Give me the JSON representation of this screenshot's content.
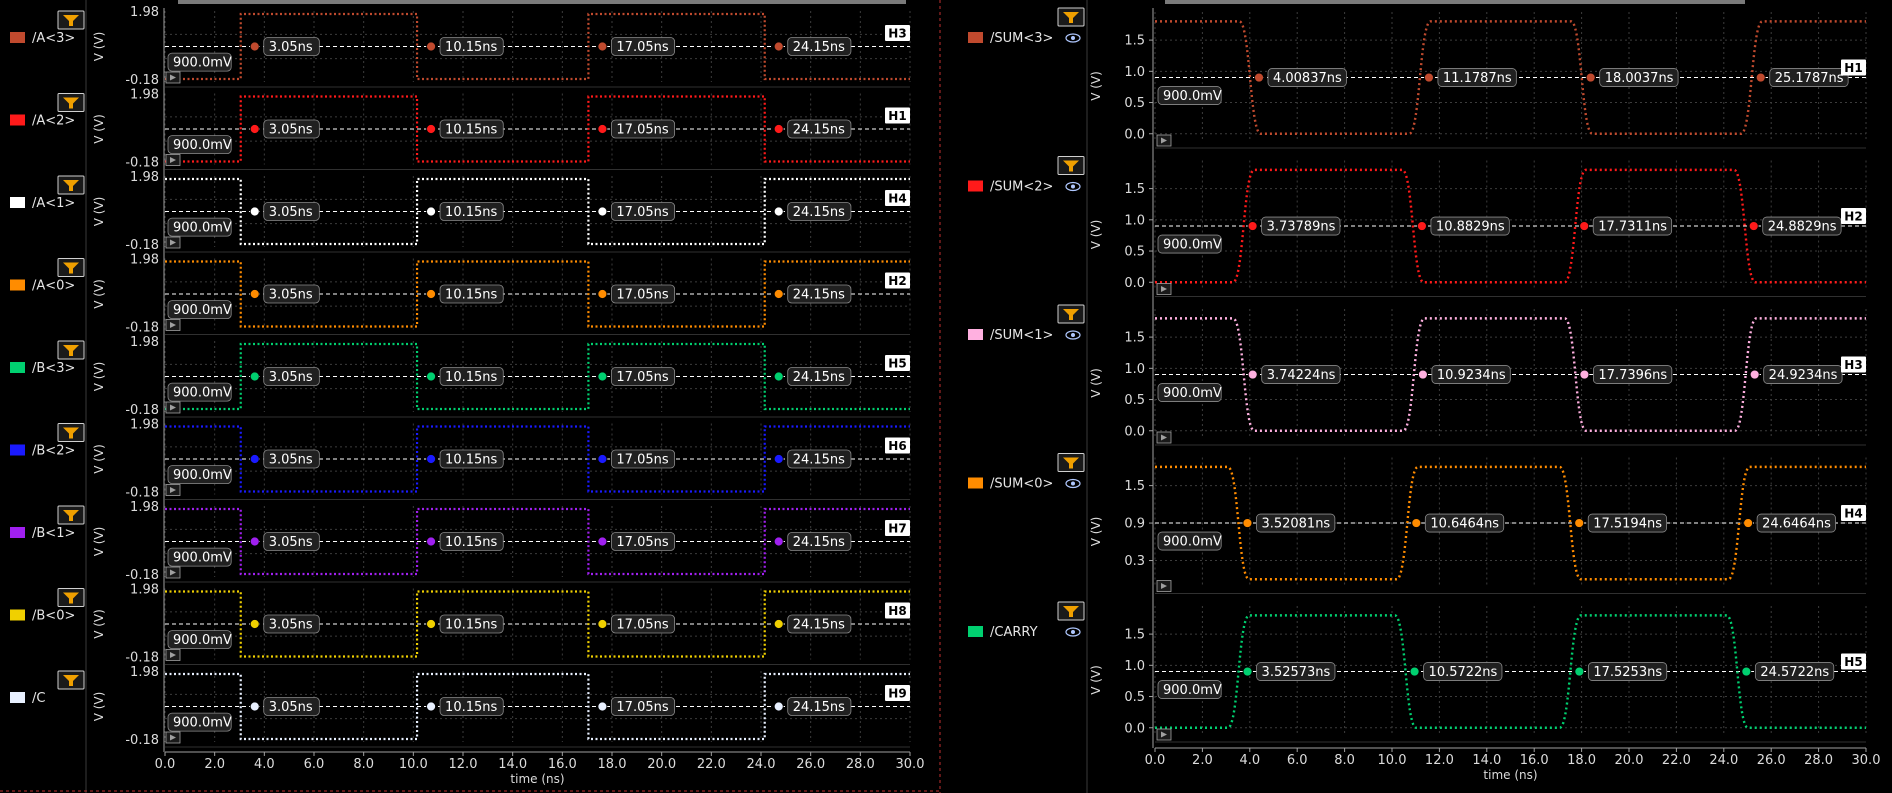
{
  "x_axis_title": "time (ns)",
  "y_axis_unit": "V (V)",
  "chart_data": [
    {
      "type": "line",
      "xlabel": "time (ns)",
      "ylabel": "V (V)",
      "xlim": [
        0,
        30
      ],
      "ylim": [
        -0.18,
        1.98
      ],
      "x_ticks": [
        "0.0",
        "2.0",
        "4.0",
        "6.0",
        "8.0",
        "10.0",
        "12.0",
        "14.0",
        "16.0",
        "18.0",
        "20.0",
        "22.0",
        "24.0",
        "26.0",
        "28.0",
        "30.0"
      ],
      "grid": true,
      "reference_level": "900.0mV",
      "series": [
        {
          "name": "/A<3>",
          "color": "#c04a2e",
          "start": "low",
          "toggles": [
            3.05,
            10.15,
            17.05,
            24.15
          ],
          "markers": [
            "3.05ns",
            "10.15ns",
            "17.05ns",
            "24.15ns"
          ],
          "tag": "H3",
          "y_top": "1.98",
          "y_bottom": "-0.18"
        },
        {
          "name": "/A<2>",
          "color": "#ff1a1a",
          "start": "low",
          "toggles": [
            3.05,
            10.15,
            17.05,
            24.15
          ],
          "markers": [
            "3.05ns",
            "10.15ns",
            "17.05ns",
            "24.15ns"
          ],
          "tag": "H1",
          "y_top": "1.98",
          "y_bottom": "-0.18"
        },
        {
          "name": "/A<1>",
          "color": "#ffffff",
          "start": "high",
          "toggles": [
            3.05,
            10.15,
            17.05,
            24.15
          ],
          "markers": [
            "3.05ns",
            "10.15ns",
            "17.05ns",
            "24.15ns"
          ],
          "tag": "H4",
          "y_top": "1.98",
          "y_bottom": "-0.18"
        },
        {
          "name": "/A<0>",
          "color": "#ff8c00",
          "start": "high",
          "toggles": [
            3.05,
            10.15,
            17.05,
            24.15
          ],
          "markers": [
            "3.05ns",
            "10.15ns",
            "17.05ns",
            "24.15ns"
          ],
          "tag": "H2",
          "y_top": "1.98",
          "y_bottom": "-0.18"
        },
        {
          "name": "/B<3>",
          "color": "#00d070",
          "start": "low",
          "toggles": [
            3.05,
            10.15,
            17.05,
            24.15
          ],
          "markers": [
            "3.05ns",
            "10.15ns",
            "17.05ns",
            "24.15ns"
          ],
          "tag": "H5",
          "y_top": "1.98",
          "y_bottom": "-0.18"
        },
        {
          "name": "/B<2>",
          "color": "#1a1aff",
          "start": "high",
          "toggles": [
            3.05,
            10.15,
            17.05,
            24.15
          ],
          "markers": [
            "3.05ns",
            "10.15ns",
            "17.05ns",
            "24.15ns"
          ],
          "tag": "H6",
          "y_top": "1.98",
          "y_bottom": "-0.18"
        },
        {
          "name": "/B<1>",
          "color": "#a020f0",
          "start": "high",
          "toggles": [
            3.05,
            10.15,
            17.05,
            24.15
          ],
          "markers": [
            "3.05ns",
            "10.15ns",
            "17.05ns",
            "24.15ns"
          ],
          "tag": "H7",
          "y_top": "1.98",
          "y_bottom": "-0.18"
        },
        {
          "name": "/B<0>",
          "color": "#f0d000",
          "start": "high",
          "toggles": [
            3.05,
            10.15,
            17.05,
            24.15
          ],
          "markers": [
            "3.05ns",
            "10.15ns",
            "17.05ns",
            "24.15ns"
          ],
          "tag": "H8",
          "y_top": "1.98",
          "y_bottom": "-0.18"
        },
        {
          "name": "/C",
          "color": "#e8f0ff",
          "start": "high",
          "toggles": [
            3.05,
            10.15,
            17.05,
            24.15
          ],
          "markers": [
            "3.05ns",
            "10.15ns",
            "17.05ns",
            "24.15ns"
          ],
          "tag": "H9",
          "y_top": "1.98",
          "y_bottom": "-0.18"
        }
      ]
    },
    {
      "type": "line",
      "xlabel": "time (ns)",
      "ylabel": "V (V)",
      "xlim": [
        0,
        30
      ],
      "ylim": [
        -0.1,
        1.95
      ],
      "x_ticks": [
        "0.0",
        "2.0",
        "4.0",
        "6.0",
        "8.0",
        "10.0",
        "12.0",
        "14.0",
        "16.0",
        "18.0",
        "20.0",
        "22.0",
        "24.0",
        "26.0",
        "28.0",
        "30.0"
      ],
      "grid": true,
      "reference_level": "900.0mV",
      "series": [
        {
          "name": "/SUM<3>",
          "color": "#c04a2e",
          "start": "high",
          "toggles": [
            4.00837,
            11.1787,
            18.0037,
            25.1787
          ],
          "markers": [
            "4.00837ns",
            "11.1787ns",
            "18.0037ns",
            "25.1787ns"
          ],
          "tag": "H1",
          "y_ticks": [
            0.0,
            0.5,
            1.0,
            1.5
          ],
          "y_tick_labels": [
            "0.0",
            "0.5",
            "1.0",
            "1.5"
          ]
        },
        {
          "name": "/SUM<2>",
          "color": "#ff1a1a",
          "start": "low",
          "toggles": [
            3.73789,
            10.8829,
            17.7311,
            24.8829
          ],
          "markers": [
            "3.73789ns",
            "10.8829ns",
            "17.7311ns",
            "24.8829ns"
          ],
          "tag": "H2",
          "y_ticks": [
            0.0,
            0.5,
            1.0,
            1.5
          ],
          "y_tick_labels": [
            "0.0",
            "0.5",
            "1.0",
            "1.5"
          ]
        },
        {
          "name": "/SUM<1>",
          "color": "#ffb0e0",
          "start": "high",
          "toggles": [
            3.74224,
            10.9234,
            17.7396,
            24.9234
          ],
          "markers": [
            "3.74224ns",
            "10.9234ns",
            "17.7396ns",
            "24.9234ns"
          ],
          "tag": "H3",
          "y_ticks": [
            0.0,
            0.5,
            1.0,
            1.5
          ],
          "y_tick_labels": [
            "0.0",
            "0.5",
            "1.0",
            "1.5"
          ]
        },
        {
          "name": "/SUM<0>",
          "color": "#ff8c00",
          "start": "high",
          "toggles": [
            3.52081,
            10.6464,
            17.5194,
            24.6464
          ],
          "markers": [
            "3.52081ns",
            "10.6464ns",
            "17.5194ns",
            "24.6464ns"
          ],
          "tag": "H4",
          "y_ticks": [
            0.3,
            0.9,
            1.5
          ],
          "y_tick_labels": [
            "0.3",
            "0.9",
            "1.5"
          ]
        },
        {
          "name": "/CARRY",
          "color": "#00d070",
          "start": "low",
          "toggles": [
            3.52573,
            10.5722,
            17.5253,
            24.5722
          ],
          "markers": [
            "3.52573ns",
            "10.5722ns",
            "17.5253ns",
            "24.5722ns"
          ],
          "tag": "H5",
          "y_ticks": [
            0.0,
            0.5,
            1.0,
            1.5
          ],
          "y_tick_labels": [
            "0.0",
            "0.5",
            "1.0",
            "1.5"
          ]
        }
      ]
    }
  ]
}
